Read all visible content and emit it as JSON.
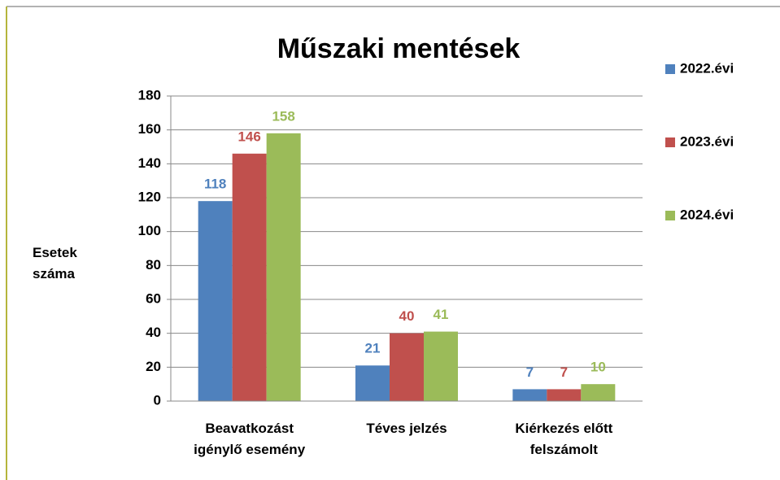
{
  "chart_data": {
    "type": "bar",
    "title": "Műszaki mentések",
    "y_label": "Esetek száma",
    "categories": [
      "Beavatkozást igénylő esemény",
      "Téves jelzés",
      "Kiérkezés előtt felszámolt"
    ],
    "series": [
      {
        "name": "2022.évi",
        "color": "#4f81bd",
        "values": [
          118,
          21,
          7
        ]
      },
      {
        "name": "2023.évi",
        "color": "#c0504d",
        "values": [
          146,
          40,
          7
        ]
      },
      {
        "name": "2024.évi",
        "color": "#9bbb59",
        "values": [
          158,
          41,
          10
        ]
      }
    ],
    "ylim": [
      0,
      180
    ],
    "yticks": [
      0,
      20,
      40,
      60,
      80,
      100,
      120,
      140,
      160,
      180
    ],
    "grid": true,
    "legend": "right"
  }
}
